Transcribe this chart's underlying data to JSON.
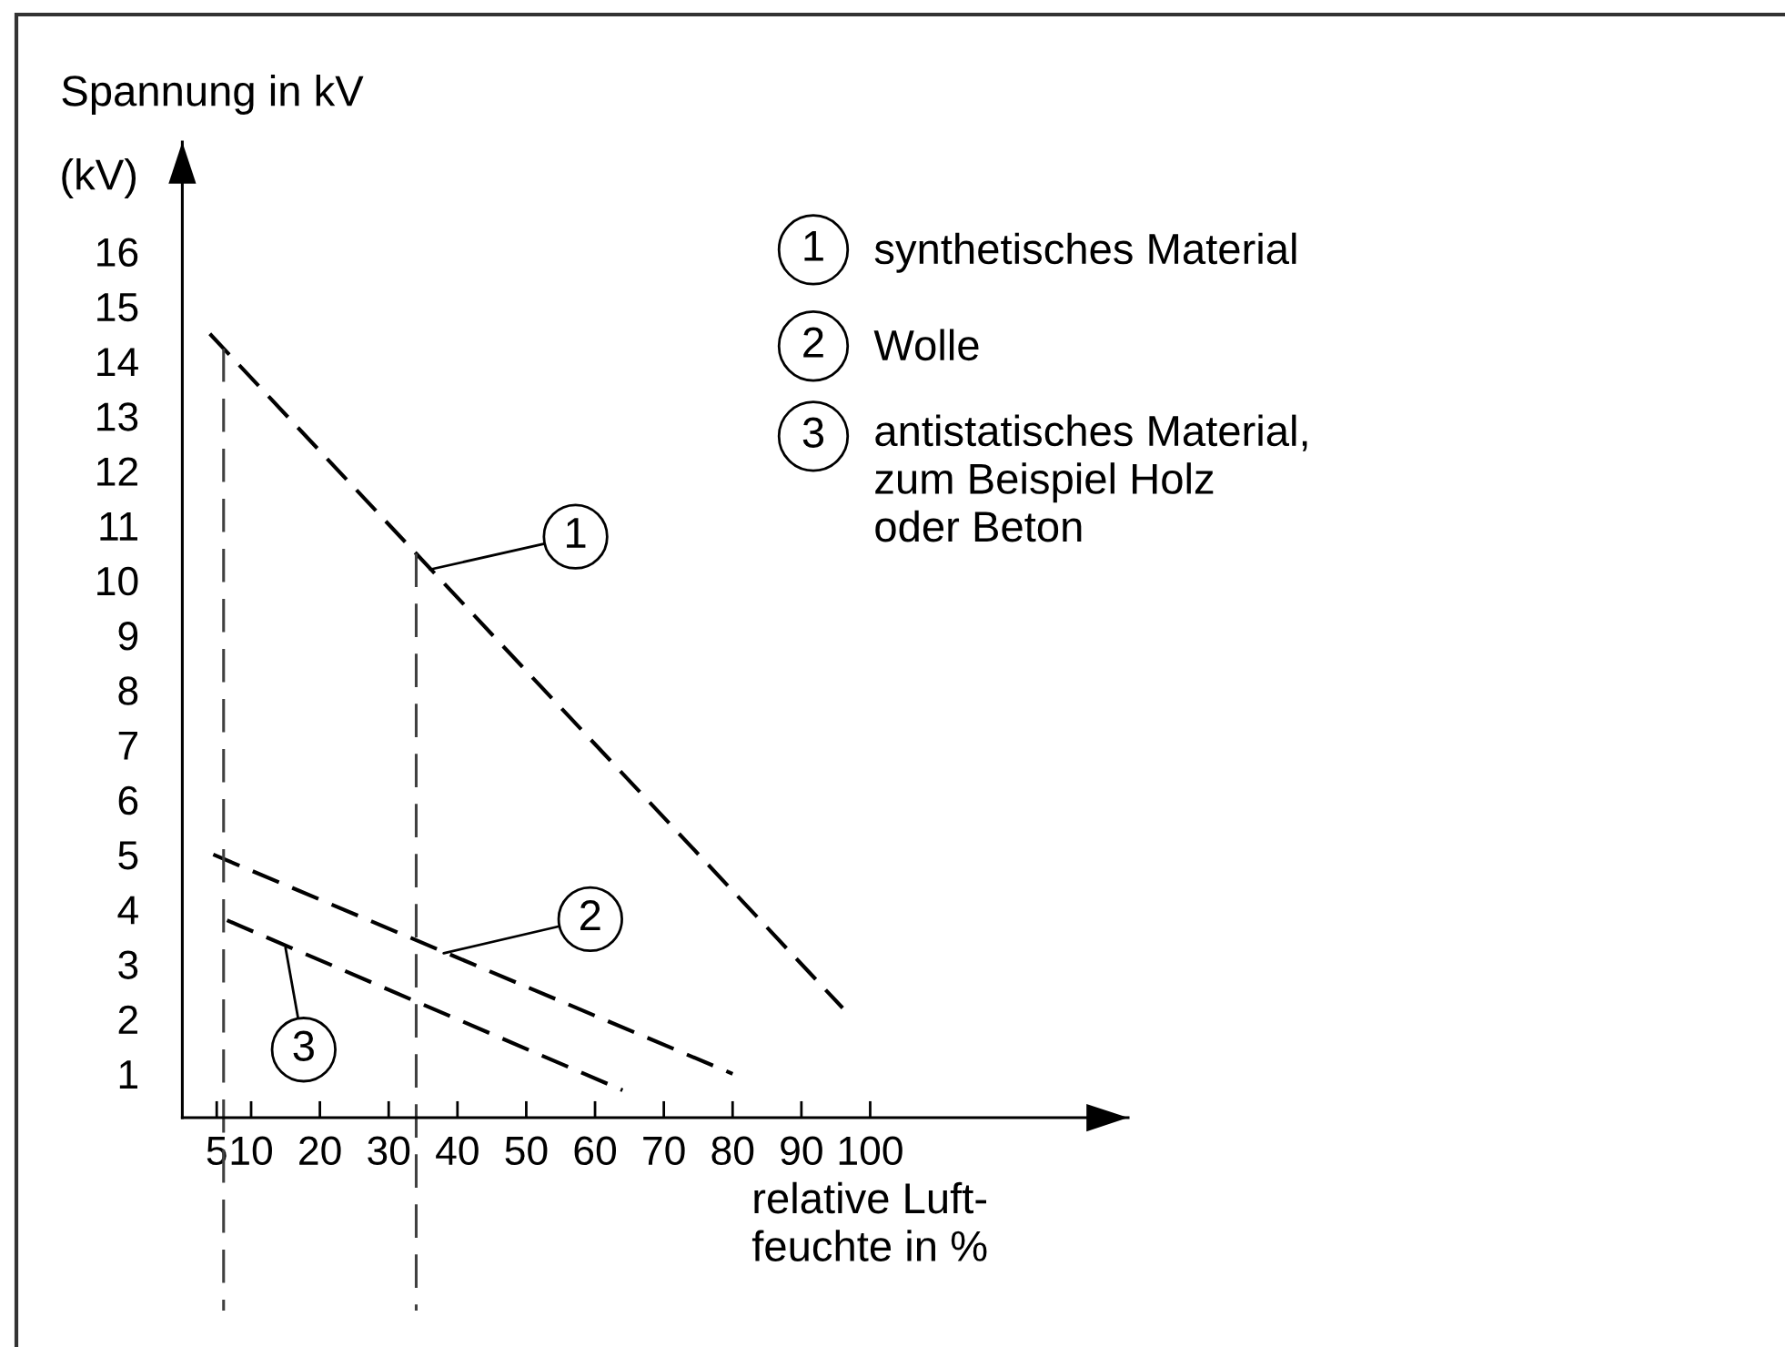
{
  "chart_data": {
    "type": "line",
    "xlabel": "relative Luft-\nfeuchte in %",
    "ylabel": "Spannung in kV",
    "annotations": [
      "(kV)",
      {
        "text": "1",
        "x": 36,
        "y": 10.2
      },
      {
        "text": "2",
        "x": 38,
        "y": 3.2
      },
      {
        "text": "3",
        "x": 15,
        "y": 3.3
      }
    ],
    "series": [
      {
        "name": "synthetisches Material",
        "color": "#000000",
        "x": [
          4,
          96
        ],
        "values": [
          14.5,
          2.2
        ]
      },
      {
        "name": "Wolle",
        "color": "#000000",
        "x": [
          4.5,
          80
        ],
        "values": [
          5.0,
          1.0
        ]
      },
      {
        "name": "antistatisches Material,\nzum Beispiel Holz\noder Beton",
        "color": "#000000",
        "x": [
          6.5,
          64
        ],
        "values": [
          3.8,
          0.7
        ]
      }
    ],
    "xlim": [
      0,
      137.5
    ],
    "xticks": [
      5,
      10,
      20,
      30,
      40,
      50,
      60,
      70,
      80,
      90,
      100
    ],
    "ylim": [
      0.2,
      18
    ],
    "yticks": [
      1,
      2,
      3,
      4,
      5,
      6,
      7,
      8,
      9,
      10,
      11,
      12,
      13,
      14,
      15,
      16
    ],
    "line_style": "dashed",
    "marker": "none",
    "legend": "top right",
    "grid": false,
    "ref_lines": [
      {
        "axis": "x",
        "value": 6,
        "color": "#404040",
        "line_style": "dashed"
      },
      {
        "axis": "x",
        "value": 34,
        "color": "#404040",
        "line_style": "dashed"
      }
    ]
  }
}
